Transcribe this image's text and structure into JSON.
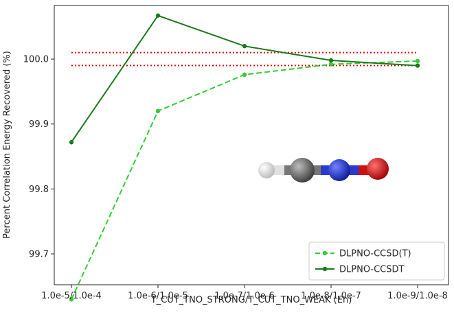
{
  "chart_data": {
    "type": "line",
    "title": "",
    "xlabel": "T_CUT_TNO_STRONG/T_CUT_TNO_WEAK (Eh)",
    "ylabel": "Percent Correlation Energy Recovered (%)",
    "categories": [
      "1.0e-5/1.0e-4",
      "1.0e-6/1.0e-5",
      "1.0e-7/1.0e-6",
      "1.0e-8/1.0e-7",
      "1.0e-9/1.0e-8"
    ],
    "ylim": [
      99.6525,
      100.0825
    ],
    "yticks": [
      99.7,
      99.8,
      99.9,
      100.0
    ],
    "ytick_labels": [
      "99.7",
      "99.8",
      "99.9",
      "100.0"
    ],
    "grid": false,
    "legend_position": "bottom-right",
    "series": [
      {
        "name": "DLPNO-CCSD(T)",
        "style": "dashed",
        "color": "#33cc33",
        "values": [
          99.63,
          99.92,
          99.976,
          99.992,
          99.997
        ]
      },
      {
        "name": "DLPNO-CCSDT",
        "style": "solid",
        "color": "#1a7a1a",
        "values": [
          99.872,
          100.067,
          100.02,
          99.998,
          99.99
        ]
      }
    ],
    "reference_lines": [
      {
        "y": 100.01,
        "style": "dotted",
        "color": "#e8000b"
      },
      {
        "y": 99.99,
        "style": "dotted",
        "color": "#e8000b"
      }
    ],
    "annotation_image": "molecule-hcno"
  }
}
